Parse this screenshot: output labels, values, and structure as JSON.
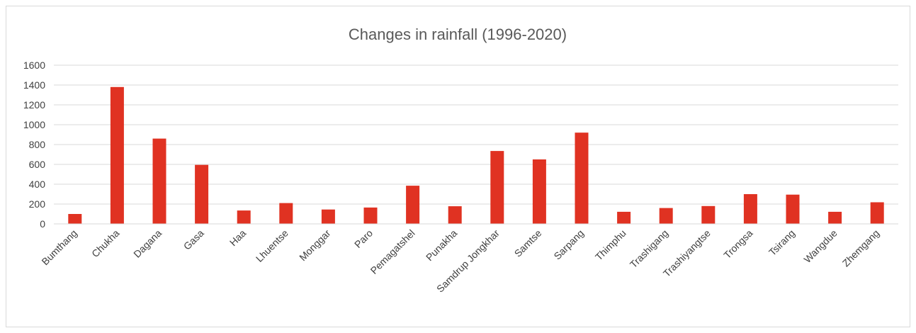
{
  "chart_data": {
    "type": "bar",
    "title": "Changes in rainfall (1996-2020)",
    "xlabel": "",
    "ylabel": "",
    "ylim": [
      0,
      1600
    ],
    "yticks": [
      "0",
      "200",
      "400",
      "600",
      "800",
      "1000",
      "1200",
      "1400",
      "1600"
    ],
    "grid": true,
    "legend": "none",
    "bar_color": "#e03222",
    "categories": [
      "Bumthang",
      "Chukha",
      "Dagana",
      "Gasa",
      "Haa",
      "Lhuentse",
      "Monggar",
      "Paro",
      "Pemagatshel",
      "Punakha",
      "Samdrup Jongkhar",
      "Samtse",
      "Sarpang",
      "Thimphu",
      "Trashigang",
      "Trashiyangtse",
      "Trongsa",
      "Tsirang",
      "Wangdue",
      "Zhemgang"
    ],
    "values": [
      100,
      1380,
      860,
      595,
      135,
      210,
      145,
      165,
      385,
      178,
      735,
      650,
      920,
      122,
      160,
      180,
      300,
      295,
      122,
      218
    ]
  }
}
